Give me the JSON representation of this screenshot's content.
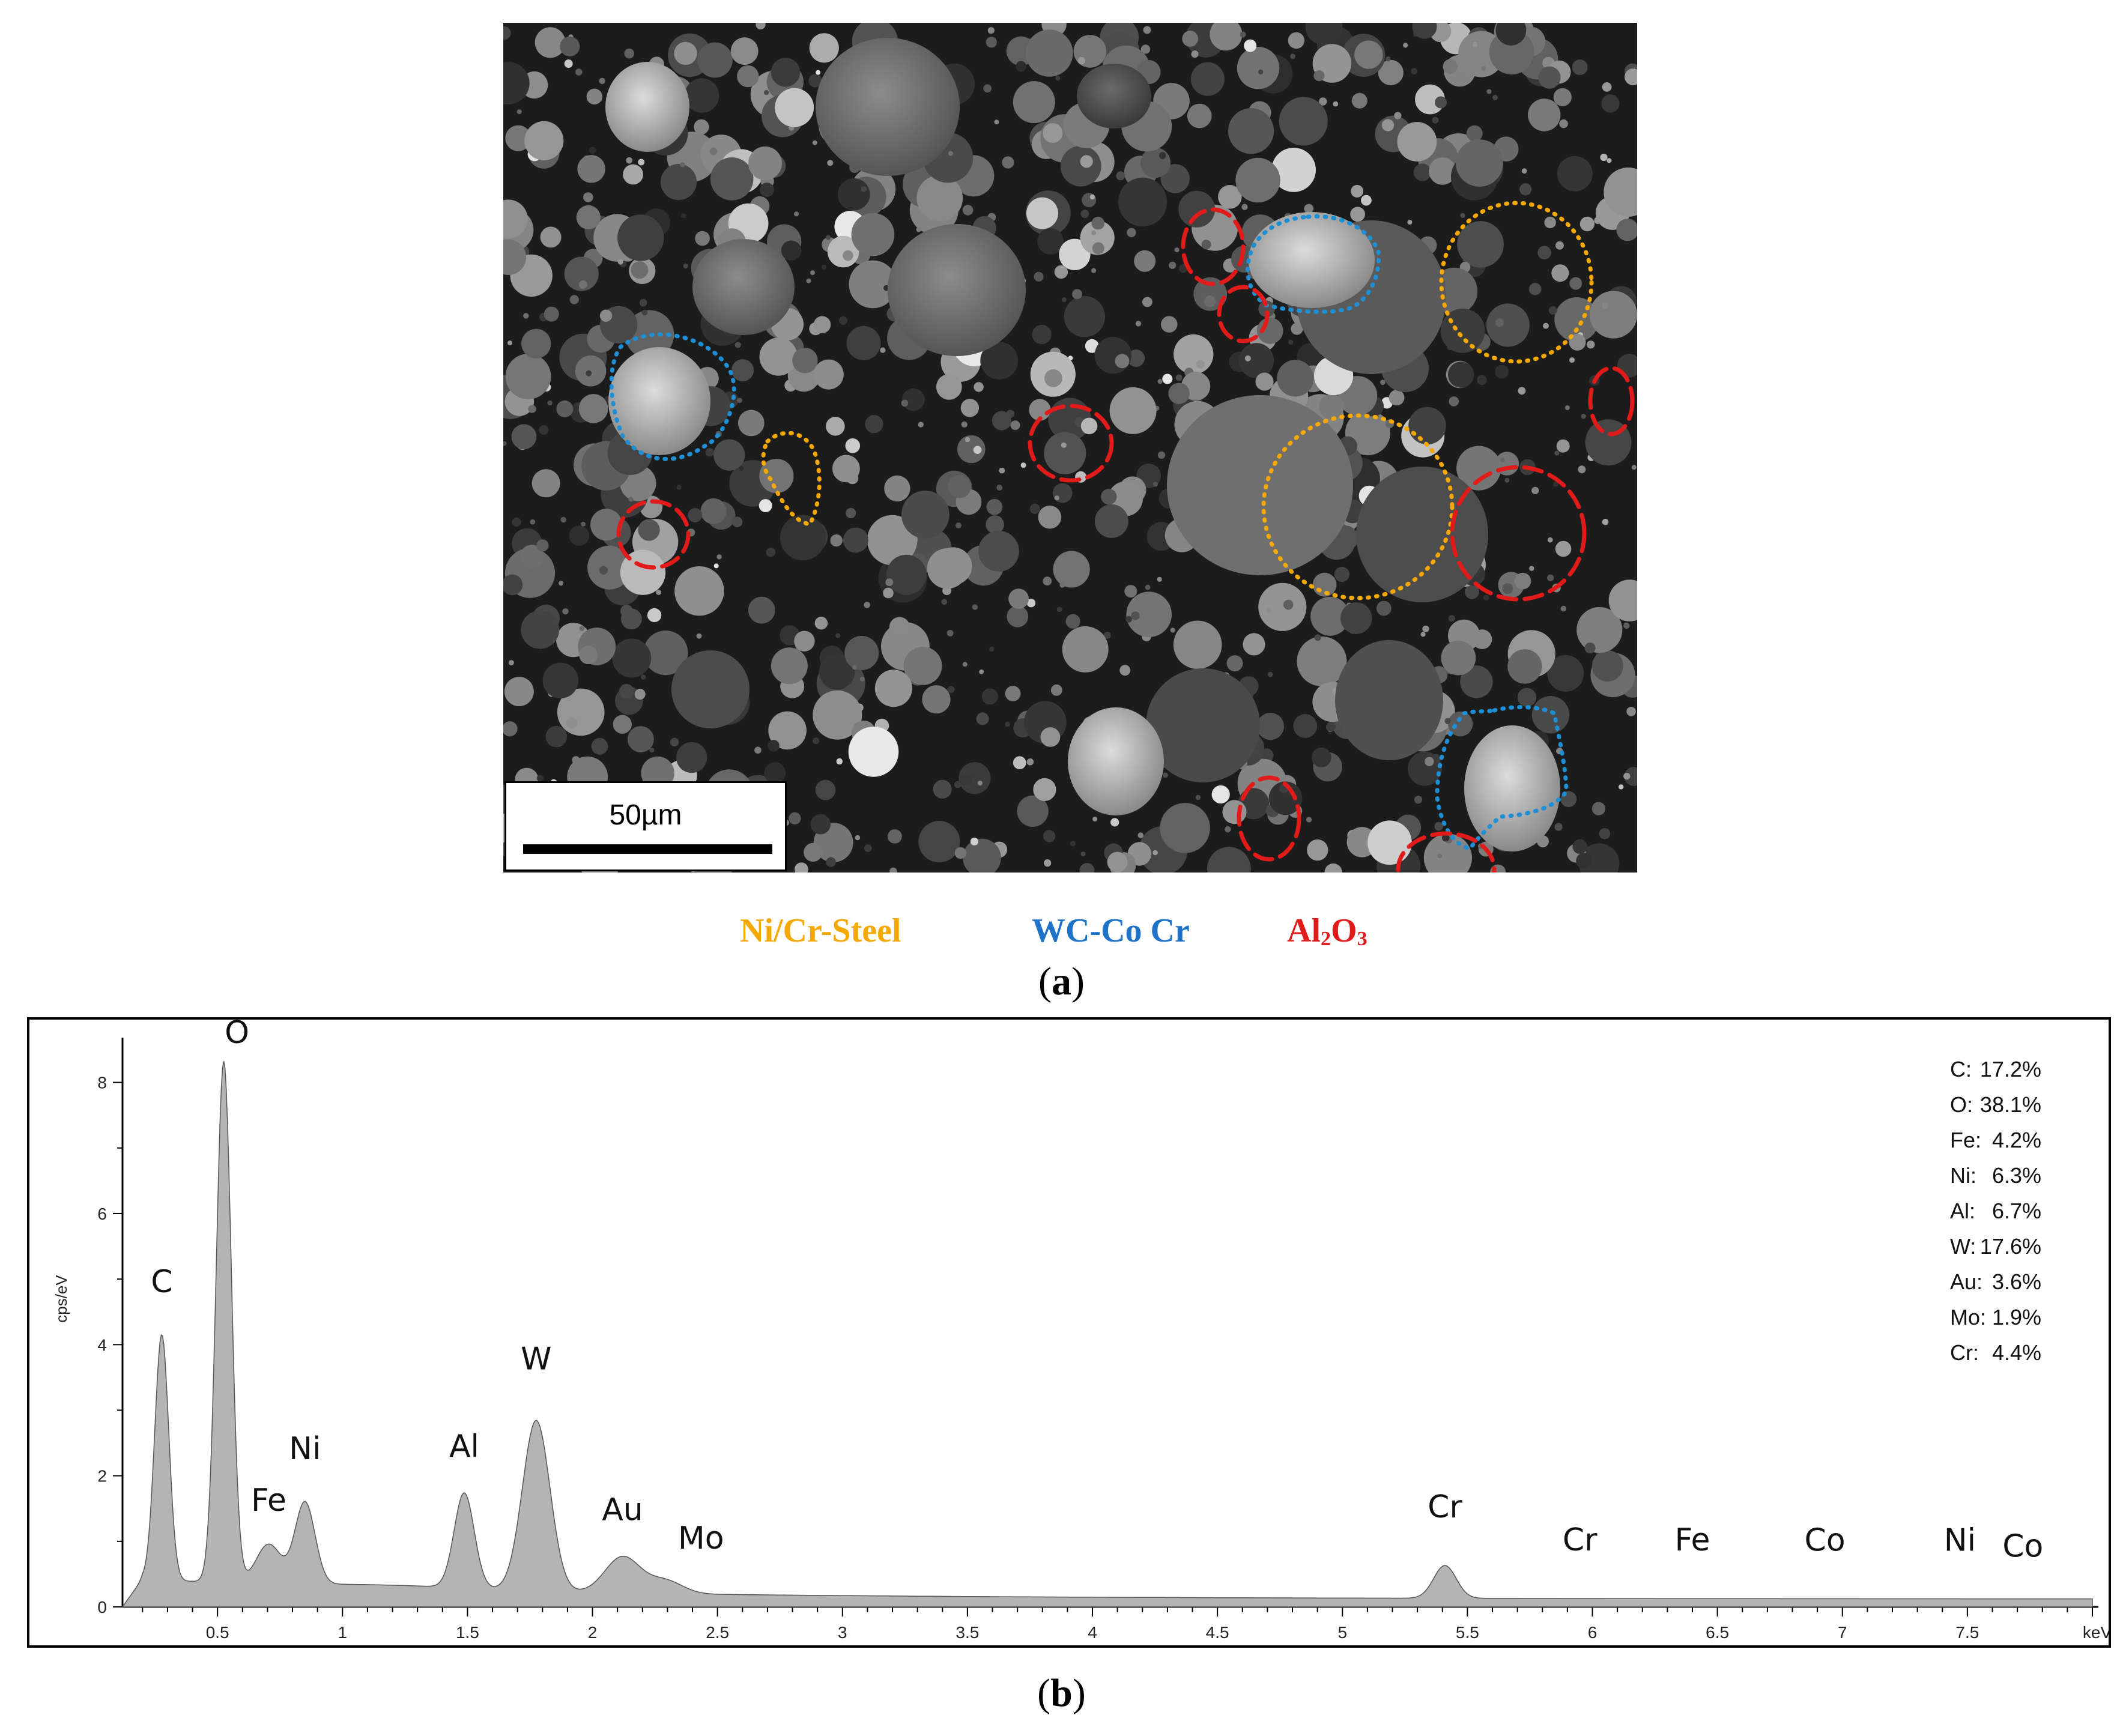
{
  "panel_a": {
    "scale_label": "50µm",
    "legend": [
      {
        "text": "Ni/Cr-Steel",
        "color": "#f5a800"
      },
      {
        "text": "WC-Co Cr",
        "color": "#1e73c8"
      },
      {
        "text_main": "Al",
        "sub1": "2",
        "text_mid": "O",
        "sub2": "3",
        "color": "#e11a1a"
      }
    ],
    "caption_letter": "a"
  },
  "panel_b": {
    "caption_letter": "b",
    "composition": [
      {
        "element": "C:",
        "value": "17.2%"
      },
      {
        "element": "O:",
        "value": "38.1%"
      },
      {
        "element": "Fe:",
        "value": "4.2%"
      },
      {
        "element": "Ni:",
        "value": "6.3%"
      },
      {
        "element": "Al:",
        "value": "6.7%"
      },
      {
        "element": "W:",
        "value": "17.6%"
      },
      {
        "element": "Au:",
        "value": "3.6%"
      },
      {
        "element": "Mo:",
        "value": "1.9%"
      },
      {
        "element": "Cr:",
        "value": "4.4%"
      }
    ]
  },
  "chart_data": {
    "type": "area",
    "ylabel": "cps/eV",
    "xunit": "keV",
    "xlim": [
      0.12,
      8.0
    ],
    "ylim": [
      0,
      8.5
    ],
    "x_ticks": [
      "0.5",
      "1",
      "1.5",
      "2",
      "2.5",
      "3",
      "3.5",
      "4",
      "4.5",
      "5",
      "5.5",
      "6",
      "6.5",
      "7",
      "7.5"
    ],
    "y_ticks": [
      "0",
      "2",
      "4",
      "6",
      "8"
    ],
    "fill_color": "#b4b4b4",
    "peaks": [
      {
        "label": "C",
        "x": 0.277,
        "y": 3.9
      },
      {
        "label": "O",
        "x": 0.525,
        "y": 8.1
      },
      {
        "label": "Fe",
        "x": 0.705,
        "y": 0.75
      },
      {
        "label": "Ni",
        "x": 0.85,
        "y": 1.4
      },
      {
        "label": "Al",
        "x": 1.487,
        "y": 1.6
      },
      {
        "label": "W",
        "x": 1.775,
        "y": 2.75
      },
      {
        "label": "Au",
        "x": 2.12,
        "y": 0.7
      },
      {
        "label": "Mo",
        "x": 2.29,
        "y": 0.35
      },
      {
        "label": "Cr",
        "x": 5.41,
        "y": 0.65
      },
      {
        "label": "Cr",
        "x": 5.95,
        "y": 0.15
      },
      {
        "label": "Fe",
        "x": 6.4,
        "y": 0.12
      },
      {
        "label": "Co",
        "x": 6.93,
        "y": 0.07
      },
      {
        "label": "Ni",
        "x": 7.47,
        "y": 0.07
      },
      {
        "label": "Co",
        "x": 7.65,
        "y": 0.04
      }
    ]
  }
}
